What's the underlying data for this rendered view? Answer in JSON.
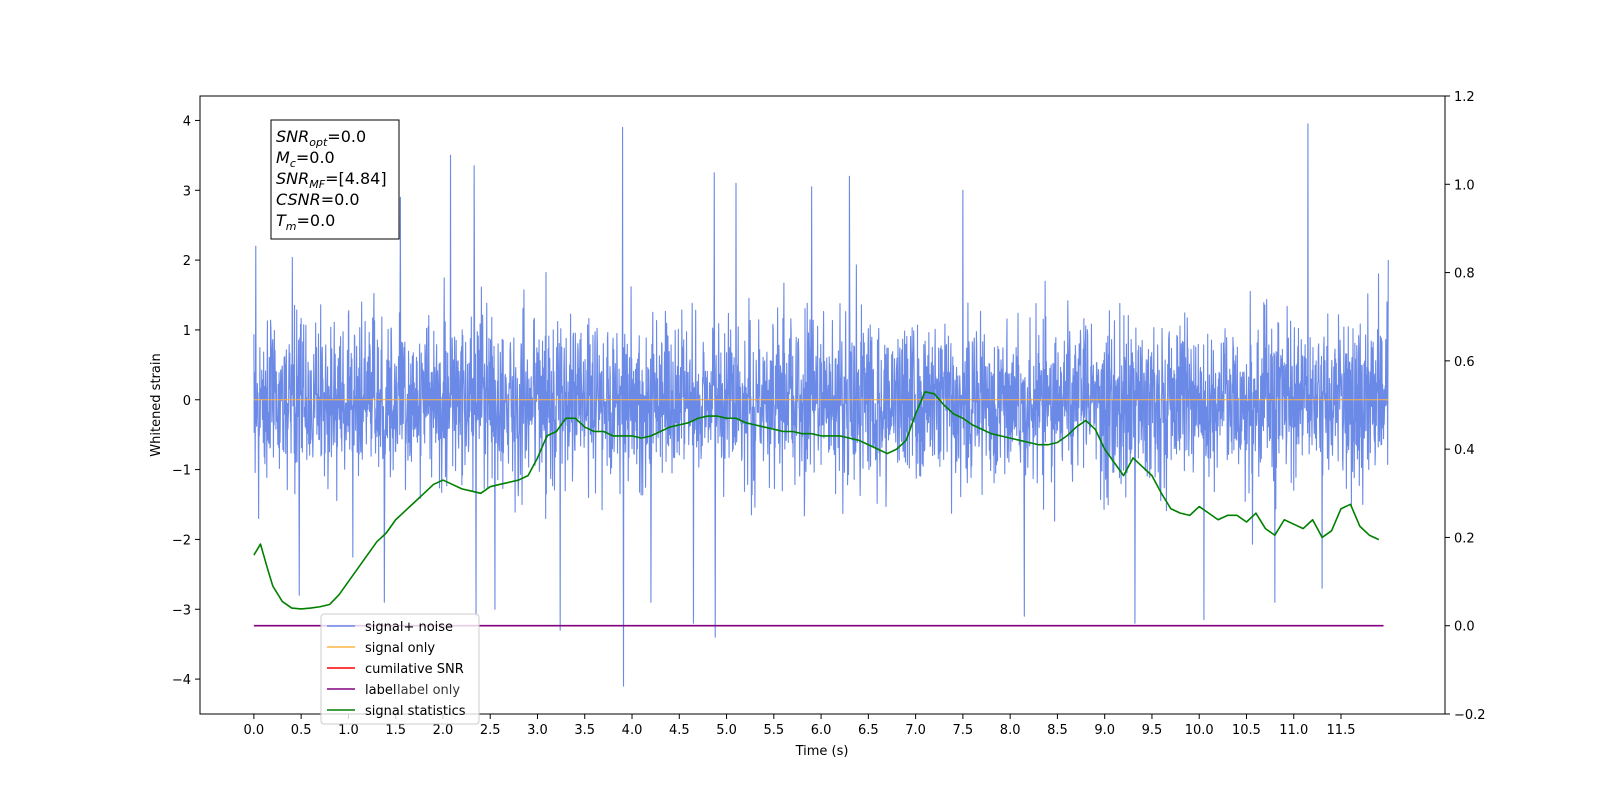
{
  "chart_data": {
    "type": "line",
    "title": "",
    "xlabel": "Time (s)",
    "ylabel": "Whitened strain",
    "y2label": "",
    "xlim": [
      -0.57,
      12.6
    ],
    "ylim": [
      -4.5,
      4.35
    ],
    "y2lim": [
      -0.2,
      1.2
    ],
    "x_ticks": [
      0.0,
      0.5,
      1.0,
      1.5,
      2.0,
      2.5,
      3.0,
      3.5,
      4.0,
      4.5,
      5.0,
      5.5,
      6.0,
      6.5,
      7.0,
      7.5,
      8.0,
      8.5,
      9.0,
      9.5,
      10.0,
      10.5,
      11.0,
      11.5
    ],
    "x_tick_labels": [
      "0.0",
      "0.5",
      "1.0",
      "1.5",
      "2.0",
      "2.5",
      "3.0",
      "3.5",
      "4.0",
      "4.5",
      "5.0",
      "5.5",
      "6.0",
      "6.5",
      "7.0",
      "7.5",
      "8.0",
      "8.5",
      "9.0",
      "9.5",
      "10.0",
      "10.5",
      "11.0",
      "11.5"
    ],
    "y_ticks": [
      -4,
      -3,
      -2,
      -1,
      0,
      1,
      2,
      3,
      4
    ],
    "y_tick_labels": [
      "−4",
      "−3",
      "−2",
      "−1",
      "0",
      "1",
      "2",
      "3",
      "4"
    ],
    "y2_ticks": [
      -0.2,
      0.0,
      0.2,
      0.4,
      0.6,
      0.8,
      1.0,
      1.2
    ],
    "y2_tick_labels": [
      "−0.2",
      "0.0",
      "0.2",
      "0.4",
      "0.6",
      "0.8",
      "1.0",
      "1.2"
    ],
    "grid": false,
    "legend_position": "bottom-left",
    "series": [
      {
        "name": "signal+ noise",
        "color": "#6b89e6",
        "axis": "left",
        "kind": "noise",
        "x_range": [
          0.0,
          12.0
        ],
        "typical_range": [
          -1.5,
          1.5
        ],
        "spikes": [
          {
            "x": 0.02,
            "y": 2.2
          },
          {
            "x": 0.05,
            "y": -1.7
          },
          {
            "x": 0.48,
            "y": -2.8
          },
          {
            "x": 1.38,
            "y": -2.9
          },
          {
            "x": 1.55,
            "y": 2.9
          },
          {
            "x": 2.08,
            "y": 3.5
          },
          {
            "x": 2.33,
            "y": 3.35
          },
          {
            "x": 2.35,
            "y": -3.1
          },
          {
            "x": 2.55,
            "y": -3.0
          },
          {
            "x": 3.24,
            "y": -3.3
          },
          {
            "x": 3.9,
            "y": 3.9
          },
          {
            "x": 3.91,
            "y": -4.1
          },
          {
            "x": 4.2,
            "y": -2.9
          },
          {
            "x": 4.65,
            "y": -3.2
          },
          {
            "x": 4.87,
            "y": 3.25
          },
          {
            "x": 4.88,
            "y": -3.4
          },
          {
            "x": 5.1,
            "y": 3.1
          },
          {
            "x": 5.9,
            "y": 3.05
          },
          {
            "x": 6.3,
            "y": 3.2
          },
          {
            "x": 7.5,
            "y": 3.0
          },
          {
            "x": 8.15,
            "y": -3.1
          },
          {
            "x": 9.32,
            "y": -3.2
          },
          {
            "x": 10.05,
            "y": -3.15
          },
          {
            "x": 10.8,
            "y": -2.9
          },
          {
            "x": 11.15,
            "y": 3.95
          },
          {
            "x": 11.3,
            "y": -2.7
          },
          {
            "x": 12.0,
            "y": 2.0
          }
        ]
      },
      {
        "name": "signal only",
        "color": "#ffb347",
        "axis": "left",
        "x": [
          0.0,
          12.0
        ],
        "y": [
          0.0,
          0.0
        ]
      },
      {
        "name": "cumilative SNR",
        "color": "#ff0000",
        "axis": "left",
        "x": [],
        "y": []
      },
      {
        "name": "label",
        "color": "#800080",
        "axis": "right",
        "x": [
          0.0,
          11.95
        ],
        "y": [
          0.0,
          0.0
        ]
      },
      {
        "name": "signal statistics",
        "color": "#008000",
        "axis": "right",
        "x": [
          0.0,
          0.07,
          0.15,
          0.2,
          0.3,
          0.4,
          0.5,
          0.6,
          0.7,
          0.8,
          0.9,
          1.0,
          1.1,
          1.2,
          1.3,
          1.4,
          1.5,
          1.6,
          1.7,
          1.8,
          1.9,
          2.0,
          2.1,
          2.2,
          2.3,
          2.4,
          2.5,
          2.6,
          2.7,
          2.8,
          2.9,
          3.0,
          3.1,
          3.2,
          3.3,
          3.4,
          3.5,
          3.6,
          3.7,
          3.8,
          3.9,
          4.0,
          4.1,
          4.2,
          4.3,
          4.4,
          4.5,
          4.6,
          4.7,
          4.8,
          4.9,
          5.0,
          5.1,
          5.2,
          5.3,
          5.4,
          5.5,
          5.6,
          5.7,
          5.8,
          5.9,
          6.0,
          6.1,
          6.2,
          6.3,
          6.4,
          6.5,
          6.6,
          6.7,
          6.8,
          6.9,
          7.0,
          7.1,
          7.2,
          7.3,
          7.4,
          7.5,
          7.6,
          7.7,
          7.8,
          7.9,
          8.0,
          8.1,
          8.2,
          8.3,
          8.4,
          8.5,
          8.6,
          8.7,
          8.8,
          8.9,
          9.0,
          9.1,
          9.2,
          9.3,
          9.4,
          9.5,
          9.6,
          9.7,
          9.8,
          9.9,
          10.0,
          10.1,
          10.2,
          10.3,
          10.4,
          10.5,
          10.6,
          10.7,
          10.8,
          10.9,
          11.0,
          11.1,
          11.2,
          11.3,
          11.4,
          11.5,
          11.6,
          11.7,
          11.8,
          11.9
        ],
        "y": [
          0.16,
          0.185,
          0.125,
          0.09,
          0.055,
          0.04,
          0.038,
          0.04,
          0.043,
          0.048,
          0.07,
          0.1,
          0.13,
          0.16,
          0.19,
          0.21,
          0.24,
          0.26,
          0.28,
          0.3,
          0.32,
          0.33,
          0.32,
          0.31,
          0.305,
          0.3,
          0.315,
          0.32,
          0.325,
          0.33,
          0.34,
          0.38,
          0.43,
          0.44,
          0.47,
          0.47,
          0.45,
          0.44,
          0.44,
          0.43,
          0.43,
          0.43,
          0.425,
          0.43,
          0.44,
          0.45,
          0.455,
          0.46,
          0.47,
          0.475,
          0.475,
          0.47,
          0.47,
          0.46,
          0.455,
          0.45,
          0.445,
          0.44,
          0.44,
          0.435,
          0.435,
          0.43,
          0.43,
          0.43,
          0.425,
          0.42,
          0.41,
          0.4,
          0.39,
          0.4,
          0.42,
          0.48,
          0.53,
          0.525,
          0.5,
          0.48,
          0.47,
          0.455,
          0.445,
          0.435,
          0.43,
          0.425,
          0.42,
          0.415,
          0.41,
          0.41,
          0.415,
          0.43,
          0.45,
          0.465,
          0.445,
          0.4,
          0.37,
          0.34,
          0.38,
          0.36,
          0.34,
          0.3,
          0.265,
          0.255,
          0.25,
          0.27,
          0.255,
          0.24,
          0.25,
          0.25,
          0.235,
          0.255,
          0.22,
          0.205,
          0.24,
          0.23,
          0.22,
          0.24,
          0.2,
          0.215,
          0.265,
          0.275,
          0.225,
          0.205,
          0.195
        ]
      }
    ],
    "annotation_box": {
      "position": "top-left",
      "lines": [
        {
          "var": "SNR",
          "sub": "opt",
          "value": "=0.0"
        },
        {
          "var": "M",
          "sub": "c",
          "value": "=0.0"
        },
        {
          "var": "SNR",
          "sub": "MF",
          "value": "=[4.84]"
        },
        {
          "var": "CSNR",
          "sub": "",
          "value": "=0.0"
        },
        {
          "var": "T",
          "sub": "m",
          "value": "=0.0"
        }
      ]
    },
    "legend_overlap_text": "label only"
  }
}
